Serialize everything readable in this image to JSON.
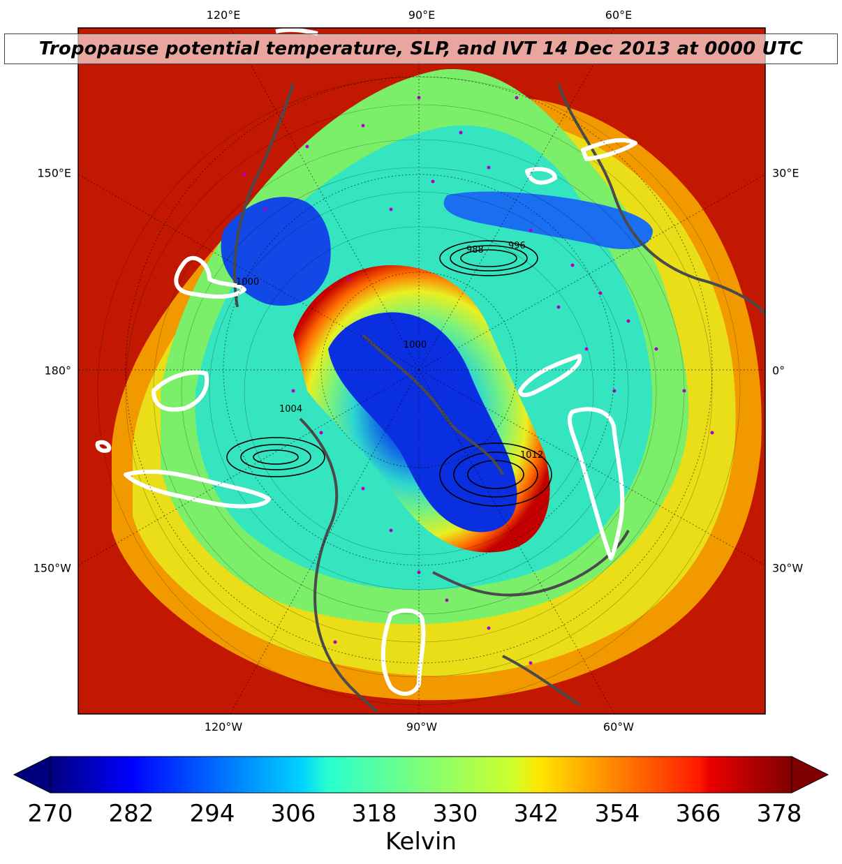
{
  "title": "Tropopause potential temperature, SLP, and IVT 14 Dec 2013 at 0000 UTC",
  "map": {
    "projection": "north-polar-stereographic",
    "top_ticks": [
      "120°E",
      "90°E",
      "60°E"
    ],
    "bottom_ticks": [
      "120°W",
      "90°W",
      "60°W"
    ],
    "left_ticks": [
      "150°E",
      "180°",
      "150°W"
    ],
    "right_ticks": [
      "30°E",
      "0°",
      "30°W"
    ],
    "slp_contour_labels": [
      "988",
      "996",
      "1000",
      "1000",
      "1004",
      "1012"
    ],
    "colors": {
      "frame": "#000000",
      "coastline": "#4a4a4a",
      "ivt_contour": "#ffffff",
      "station_marker": "#b000c8",
      "slp_contour": "#000000"
    }
  },
  "colorbar": {
    "colormap": "jet",
    "min": 270,
    "max": 378,
    "tick_labels": [
      "270",
      "282",
      "294",
      "306",
      "318",
      "330",
      "342",
      "354",
      "366",
      "378"
    ],
    "label": "Kelvin",
    "extend": "both"
  },
  "legend_icons": [
    "coastline-icon",
    "ivt-contour-icon",
    "station-marker-icon"
  ]
}
